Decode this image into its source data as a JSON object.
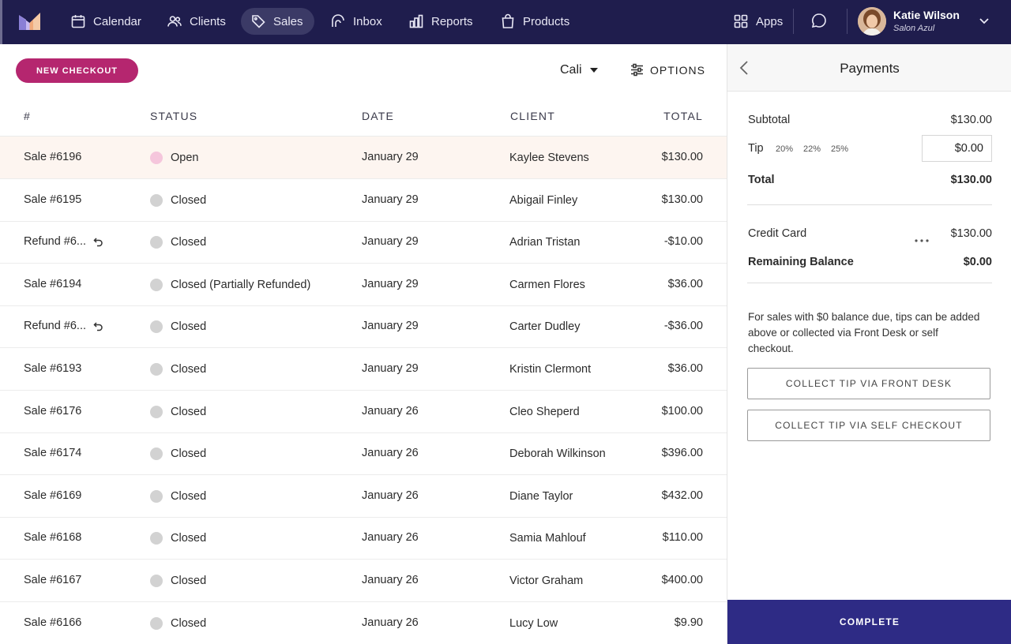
{
  "nav": {
    "items": [
      {
        "label": "Calendar",
        "icon": "calendar-icon"
      },
      {
        "label": "Clients",
        "icon": "users-icon"
      },
      {
        "label": "Sales",
        "icon": "tag-icon",
        "active": true
      },
      {
        "label": "Inbox",
        "icon": "inbox-icon"
      },
      {
        "label": "Reports",
        "icon": "bar-chart-icon"
      },
      {
        "label": "Products",
        "icon": "shopping-bag-icon"
      }
    ],
    "apps_label": "Apps",
    "user": {
      "name": "Katie Wilson",
      "business": "Salon Azul"
    }
  },
  "toolbar": {
    "new_checkout": "NEW CHECKOUT",
    "location": "Cali",
    "options": "OPTIONS"
  },
  "table": {
    "headers": {
      "num": "#",
      "status": "STATUS",
      "date": "DATE",
      "client": "CLIENT",
      "total": "TOTAL"
    },
    "rows": [
      {
        "num": "Sale #6196",
        "status": "Open",
        "date": "January 29",
        "client": "Kaylee Stevens",
        "total": "$130.00",
        "open": true
      },
      {
        "num": "Sale #6195",
        "status": "Closed",
        "date": "January 29",
        "client": "Abigail Finley",
        "total": "$130.00"
      },
      {
        "num": "Refund #6...",
        "status": "Closed",
        "date": "January 29",
        "client": "Adrian Tristan",
        "total": "-$10.00",
        "refund": true
      },
      {
        "num": "Sale #6194",
        "status": "Closed (Partially Refunded)",
        "date": "January 29",
        "client": "Carmen Flores",
        "total": "$36.00"
      },
      {
        "num": "Refund #6...",
        "status": "Closed",
        "date": "January 29",
        "client": "Carter Dudley",
        "total": "-$36.00",
        "refund": true
      },
      {
        "num": "Sale #6193",
        "status": "Closed",
        "date": "January 29",
        "client": "Kristin Clermont",
        "total": "$36.00"
      },
      {
        "num": "Sale #6176",
        "status": "Closed",
        "date": "January 26",
        "client": "Cleo Sheperd",
        "total": "$100.00"
      },
      {
        "num": "Sale #6174",
        "status": "Closed",
        "date": "January 26",
        "client": "Deborah Wilkinson",
        "total": "$396.00"
      },
      {
        "num": "Sale #6169",
        "status": "Closed",
        "date": "January 26",
        "client": "Diane Taylor",
        "total": "$432.00"
      },
      {
        "num": "Sale #6168",
        "status": "Closed",
        "date": "January 26",
        "client": "Samia Mahlouf",
        "total": "$110.00"
      },
      {
        "num": "Sale #6167",
        "status": "Closed",
        "date": "January 26",
        "client": "Victor Graham",
        "total": "$400.00"
      },
      {
        "num": "Sale #6166",
        "status": "Closed",
        "date": "January 26",
        "client": "Lucy Low",
        "total": "$9.90"
      }
    ]
  },
  "payments": {
    "title": "Payments",
    "subtotal_label": "Subtotal",
    "subtotal_value": "$130.00",
    "tip_label": "Tip",
    "tip_options": [
      "20%",
      "22%",
      "25%"
    ],
    "tip_value": "$0.00",
    "total_label": "Total",
    "total_value": "$130.00",
    "method_label": "Credit Card",
    "method_value": "$130.00",
    "remaining_label": "Remaining Balance",
    "remaining_value": "$0.00",
    "info_text": "For sales with $0 balance due, tips can be added above or collected via Front Desk or self checkout.",
    "collect_front_desk": "COLLECT TIP VIA FRONT DESK",
    "collect_self_checkout": "COLLECT TIP VIA SELF CHECKOUT",
    "complete": "COMPLETE"
  },
  "colors": {
    "nav_bg": "#1f1d4d",
    "new_checkout_bg": "#b5266f",
    "complete_bg": "#2e2b85",
    "open_dot": "#f5c6dc",
    "closed_dot": "#d2d2d2",
    "highlight_row": "#fdf5f0"
  }
}
